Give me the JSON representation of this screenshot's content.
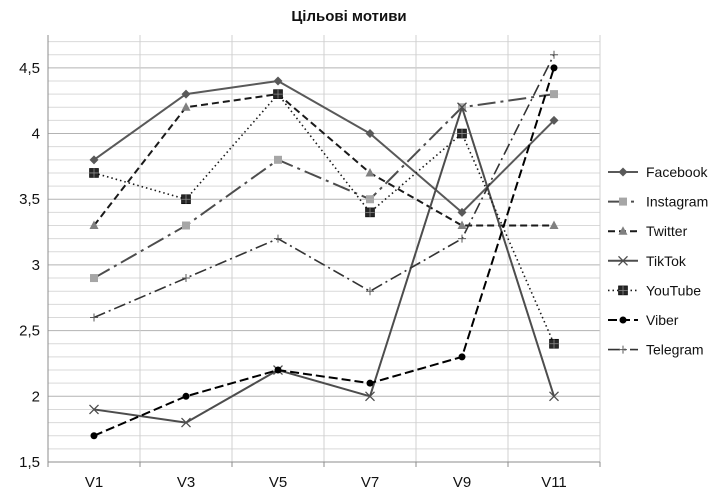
{
  "chart_data": {
    "type": "line",
    "title": "Цільові мотиви",
    "categories": [
      "V1",
      "V3",
      "V5",
      "V7",
      "V9",
      "V11"
    ],
    "ylim": [
      1.5,
      4.75
    ],
    "ytick_values": [
      1.5,
      2,
      2.5,
      3,
      3.5,
      4,
      4.5
    ],
    "ytick_labels": [
      "1,5",
      "2",
      "2,5",
      "3",
      "3,5",
      "4",
      "4,5"
    ],
    "grid": true,
    "legend_position": "right",
    "series": [
      {
        "name": "Facebook",
        "values": [
          3.8,
          4.3,
          4.4,
          4.0,
          3.4,
          4.1
        ],
        "color": "#595959",
        "dash": "",
        "marker": "diamond",
        "width": 2
      },
      {
        "name": "Instagram",
        "values": [
          2.9,
          3.3,
          3.8,
          3.5,
          4.2,
          4.3
        ],
        "color": "#4d4d4d",
        "dash": "18 5 3 5",
        "marker": "square-light",
        "width": 2
      },
      {
        "name": "Twitter",
        "values": [
          3.3,
          4.2,
          4.3,
          3.7,
          3.3,
          3.3
        ],
        "color": "#1a1a1a",
        "dash": "7 4",
        "marker": "triangle",
        "width": 2
      },
      {
        "name": "TikTok",
        "values": [
          1.9,
          1.8,
          2.2,
          2.0,
          4.2,
          2.0
        ],
        "color": "#4d4d4d",
        "dash": "",
        "marker": "x",
        "width": 2
      },
      {
        "name": "YouTube",
        "values": [
          3.7,
          3.5,
          4.3,
          3.4,
          4.0,
          2.4
        ],
        "color": "#1a1a1a",
        "dash": "1.5 3",
        "marker": "square-dark",
        "width": 1.6
      },
      {
        "name": "Viber",
        "values": [
          1.7,
          2.0,
          2.2,
          2.1,
          2.3,
          4.5
        ],
        "color": "#000000",
        "dash": "9 4",
        "marker": "circle",
        "width": 2
      },
      {
        "name": "Telegram",
        "values": [
          2.6,
          2.9,
          3.2,
          2.8,
          3.2,
          4.6
        ],
        "color": "#333333",
        "dash": "12 4 2 4",
        "marker": "plus",
        "width": 1.6
      }
    ]
  }
}
